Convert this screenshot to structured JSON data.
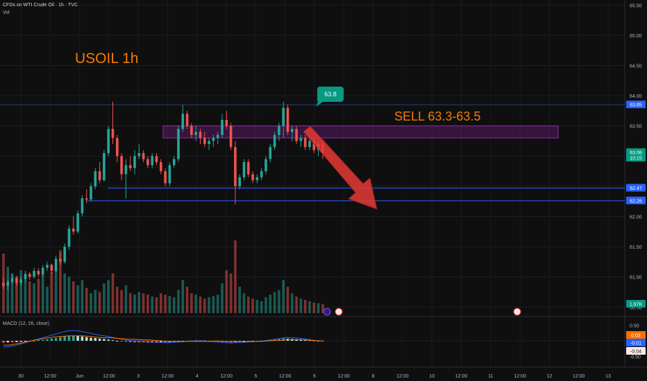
{
  "header": {
    "title": "CFDs on WTI Crude Oil · 1h · TVC",
    "volume_label": "Vol",
    "macd_label": "MACD (12, 26, close)"
  },
  "annotations": {
    "symbol_label": "USOIL 1h",
    "sell_label": "SELL 63.3-63.5",
    "callout_label": "63.8"
  },
  "price_badges": {
    "top_level": "63.85",
    "last_price": "63.06",
    "countdown": "10:15",
    "support_1": "62.47",
    "support_2": "62.26",
    "volume": "1.97K"
  },
  "macd_badges": {
    "a": "0.03",
    "b": "-0.01",
    "c": "-0.04"
  },
  "colors": {
    "background": "#0f0f0f",
    "up": "#26a69a",
    "down": "#ef5350",
    "annotation_orange": "#f57c00",
    "support_blue": "#2962ff",
    "zone_purple": "#9c27b0",
    "arrow_red": "#e53935",
    "callout_teal": "#089981"
  },
  "chart_data": {
    "type": "candlestick",
    "title": "CFDs on WTI Crude Oil · 1h · TVC",
    "y_axis_ticks": [
      "65.50",
      "65.00",
      "64.50",
      "64.00",
      "63.50",
      "63.00",
      "62.50",
      "62.00",
      "61.50",
      "61.00",
      "60.50"
    ],
    "macd_axis_ticks": [
      "0.50",
      "0.00",
      "-0.50"
    ],
    "x_axis_ticks": [
      "30",
      "12:00",
      "Jun",
      "12:00",
      "3",
      "12:00",
      "4",
      "12:00",
      "5",
      "12:00",
      "6",
      "12:00",
      "8",
      "12:00",
      "10",
      "12:00",
      "11",
      "12:00",
      "12",
      "12:00",
      "13"
    ],
    "ylim": [
      60.4,
      65.55
    ],
    "horizontal_levels": [
      63.85,
      62.47,
      62.26
    ],
    "sell_zone": [
      63.3,
      63.5
    ],
    "callout_price": 63.8,
    "last_price": 63.06,
    "candles": [
      [
        60.9,
        60.98,
        60.8,
        60.85
      ],
      [
        60.85,
        60.95,
        60.78,
        60.92
      ],
      [
        60.92,
        61.05,
        60.88,
        60.98
      ],
      [
        60.98,
        61.02,
        60.85,
        60.9
      ],
      [
        60.9,
        61.0,
        60.85,
        60.96
      ],
      [
        60.96,
        61.1,
        60.92,
        61.05
      ],
      [
        61.05,
        61.08,
        60.95,
        61.0
      ],
      [
        61.0,
        61.15,
        60.97,
        61.1
      ],
      [
        61.1,
        61.14,
        61.0,
        61.04
      ],
      [
        61.04,
        61.2,
        61.0,
        61.15
      ],
      [
        61.15,
        61.25,
        61.1,
        61.2
      ],
      [
        61.2,
        61.22,
        61.05,
        61.1
      ],
      [
        61.1,
        61.35,
        61.08,
        61.3
      ],
      [
        61.3,
        61.4,
        61.2,
        61.25
      ],
      [
        61.25,
        61.55,
        61.22,
        61.5
      ],
      [
        61.5,
        61.85,
        61.45,
        61.8
      ],
      [
        61.8,
        62.0,
        61.7,
        61.75
      ],
      [
        61.75,
        62.1,
        61.72,
        62.05
      ],
      [
        62.05,
        62.35,
        62.0,
        62.3
      ],
      [
        62.3,
        62.45,
        62.22,
        62.28
      ],
      [
        62.28,
        62.55,
        62.25,
        62.5
      ],
      [
        62.5,
        62.8,
        62.45,
        62.75
      ],
      [
        62.75,
        62.9,
        62.55,
        62.6
      ],
      [
        62.6,
        63.1,
        62.58,
        63.05
      ],
      [
        63.05,
        63.5,
        63.0,
        63.45
      ],
      [
        63.45,
        63.9,
        63.2,
        63.3
      ],
      [
        63.3,
        63.35,
        62.9,
        63.0
      ],
      [
        63.0,
        63.05,
        62.6,
        62.7
      ],
      [
        62.7,
        62.95,
        62.3,
        62.85
      ],
      [
        62.85,
        63.0,
        62.75,
        62.8
      ],
      [
        62.8,
        63.1,
        62.7,
        63.0
      ],
      [
        63.0,
        63.2,
        62.95,
        63.05
      ],
      [
        63.05,
        63.1,
        62.9,
        62.95
      ],
      [
        62.95,
        63.0,
        62.8,
        62.85
      ],
      [
        62.85,
        63.05,
        62.8,
        63.0
      ],
      [
        63.0,
        63.05,
        62.85,
        62.9
      ],
      [
        62.9,
        62.95,
        62.7,
        62.75
      ],
      [
        62.75,
        62.8,
        62.5,
        62.55
      ],
      [
        62.55,
        62.9,
        62.5,
        62.85
      ],
      [
        62.85,
        63.0,
        62.8,
        62.95
      ],
      [
        62.95,
        63.5,
        62.9,
        63.45
      ],
      [
        63.45,
        63.85,
        63.4,
        63.7
      ],
      [
        63.7,
        63.75,
        63.45,
        63.5
      ],
      [
        63.5,
        63.55,
        63.3,
        63.35
      ],
      [
        63.35,
        63.5,
        63.25,
        63.4
      ],
      [
        63.4,
        63.45,
        63.2,
        63.3
      ],
      [
        63.3,
        63.4,
        63.15,
        63.2
      ],
      [
        63.2,
        63.3,
        63.1,
        63.25
      ],
      [
        63.25,
        63.35,
        63.15,
        63.3
      ],
      [
        63.3,
        63.4,
        63.2,
        63.35
      ],
      [
        63.35,
        63.7,
        63.3,
        63.6
      ],
      [
        63.6,
        63.75,
        63.45,
        63.5
      ],
      [
        63.5,
        63.55,
        63.1,
        63.15
      ],
      [
        63.15,
        63.25,
        62.2,
        62.5
      ],
      [
        62.5,
        62.7,
        62.45,
        62.65
      ],
      [
        62.65,
        62.95,
        62.6,
        62.9
      ],
      [
        62.9,
        62.95,
        62.65,
        62.7
      ],
      [
        62.7,
        62.75,
        62.55,
        62.6
      ],
      [
        62.6,
        62.7,
        62.55,
        62.65
      ],
      [
        62.65,
        62.8,
        62.6,
        62.75
      ],
      [
        62.75,
        63.0,
        62.7,
        62.95
      ],
      [
        62.95,
        63.2,
        62.9,
        63.15
      ],
      [
        63.15,
        63.4,
        63.1,
        63.35
      ],
      [
        63.35,
        63.55,
        63.25,
        63.5
      ],
      [
        63.5,
        63.9,
        63.3,
        63.8
      ],
      [
        63.8,
        63.85,
        63.35,
        63.4
      ],
      [
        63.4,
        63.5,
        63.25,
        63.45
      ],
      [
        63.45,
        63.5,
        63.2,
        63.25
      ],
      [
        63.25,
        63.35,
        63.15,
        63.3
      ],
      [
        63.3,
        63.35,
        63.1,
        63.15
      ],
      [
        63.15,
        63.3,
        63.1,
        63.25
      ],
      [
        63.25,
        63.3,
        63.05,
        63.1
      ],
      [
        63.1,
        63.25,
        63.0,
        63.2
      ],
      [
        63.2,
        63.25,
        62.95,
        63.06
      ]
    ],
    "volume": [
      90,
      70,
      60,
      55,
      65,
      50,
      48,
      45,
      52,
      58,
      40,
      62,
      70,
      95,
      60,
      55,
      48,
      42,
      50,
      38,
      30,
      35,
      32,
      45,
      50,
      60,
      40,
      35,
      42,
      30,
      28,
      32,
      30,
      28,
      25,
      24,
      30,
      28,
      26,
      24,
      35,
      50,
      40,
      30,
      28,
      25,
      22,
      24,
      26,
      28,
      45,
      65,
      60,
      110,
      40,
      30,
      25,
      22,
      20,
      18,
      24,
      28,
      32,
      35,
      50,
      40,
      30,
      25,
      22,
      20,
      18,
      16,
      15,
      14
    ],
    "macd_histogram": [
      -0.06,
      -0.05,
      -0.05,
      -0.04,
      -0.03,
      -0.02,
      -0.01,
      0.0,
      0.02,
      0.03,
      0.05,
      0.07,
      0.09,
      0.12,
      0.15,
      0.16,
      0.17,
      0.16,
      0.14,
      0.12,
      0.1,
      0.09,
      0.07,
      0.06,
      0.04,
      0.02,
      0.0,
      -0.02,
      -0.03,
      -0.04,
      -0.05,
      -0.05,
      -0.05,
      -0.06,
      -0.06,
      -0.06,
      -0.05,
      -0.05,
      -0.04,
      -0.03,
      -0.02,
      -0.01,
      0.0,
      0.01,
      0.02,
      0.02,
      0.01,
      0.0,
      -0.02,
      -0.03,
      -0.04,
      -0.04,
      -0.05,
      -0.04,
      -0.03,
      -0.02,
      -0.02,
      -0.01,
      0.0,
      0.01,
      0.02,
      0.03,
      0.04,
      0.06,
      0.08,
      0.07,
      0.06,
      0.05,
      0.04,
      0.03,
      0.02,
      0.01,
      0.0,
      -0.01
    ],
    "macd_line": [
      -0.2,
      -0.19,
      -0.17,
      -0.14,
      -0.1,
      -0.06,
      -0.02,
      0.02,
      0.06,
      0.1,
      0.14,
      0.18,
      0.22,
      0.26,
      0.3,
      0.32,
      0.33,
      0.32,
      0.3,
      0.27,
      0.24,
      0.21,
      0.18,
      0.16,
      0.14,
      0.11,
      0.08,
      0.05,
      0.03,
      0.01,
      0.0,
      -0.01,
      -0.02,
      -0.03,
      -0.04,
      -0.05,
      -0.05,
      -0.06,
      -0.06,
      -0.05,
      -0.04,
      -0.03,
      -0.02,
      -0.01,
      0.0,
      0.0,
      -0.01,
      -0.02,
      -0.03,
      -0.04,
      -0.05,
      -0.06,
      -0.07,
      -0.06,
      -0.05,
      -0.05,
      -0.04,
      -0.03,
      -0.02,
      -0.01,
      0.01,
      0.03,
      0.05,
      0.07,
      0.1,
      0.11,
      0.1,
      0.09,
      0.08,
      0.06,
      0.04,
      0.02,
      0.0,
      -0.01
    ],
    "signal_line": [
      -0.14,
      -0.14,
      -0.12,
      -0.1,
      -0.07,
      -0.04,
      -0.01,
      0.02,
      0.04,
      0.07,
      0.09,
      0.11,
      0.13,
      0.14,
      0.15,
      0.16,
      0.16,
      0.16,
      0.16,
      0.15,
      0.14,
      0.12,
      0.11,
      0.1,
      0.1,
      0.09,
      0.08,
      0.07,
      0.06,
      0.05,
      0.05,
      0.04,
      0.03,
      0.03,
      0.02,
      0.01,
      0.0,
      -0.01,
      -0.02,
      -0.02,
      -0.02,
      -0.02,
      -0.02,
      -0.02,
      -0.02,
      -0.02,
      -0.02,
      -0.02,
      -0.01,
      -0.01,
      -0.01,
      -0.02,
      -0.02,
      -0.02,
      -0.02,
      -0.03,
      -0.02,
      -0.02,
      -0.02,
      -0.02,
      -0.01,
      0.0,
      0.01,
      0.01,
      0.02,
      0.04,
      0.04,
      0.04,
      0.04,
      0.03,
      0.02,
      0.01,
      0.0,
      0.0
    ]
  }
}
